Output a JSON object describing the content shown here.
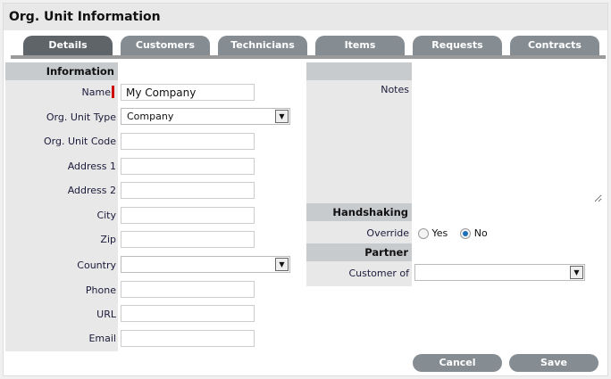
{
  "title": "Org. Unit Information",
  "tabs": [
    {
      "label": "Details",
      "active": true
    },
    {
      "label": "Customers"
    },
    {
      "label": "Technicians"
    },
    {
      "label": "Items"
    },
    {
      "label": "Requests"
    },
    {
      "label": "Contracts"
    }
  ],
  "information": {
    "header": "Information",
    "name_label": "Name",
    "name_value": "My Company",
    "type_label": "Org. Unit Type",
    "type_value": "Company",
    "code_label": "Org. Unit Code",
    "address1_label": "Address 1",
    "address2_label": "Address 2",
    "city_label": "City",
    "zip_label": "Zip",
    "country_label": "Country",
    "phone_label": "Phone",
    "url_label": "URL",
    "email_label": "Email"
  },
  "notes": {
    "label": "Notes",
    "value": ""
  },
  "handshaking": {
    "header": "Handshaking",
    "override_label": "Override",
    "yes_label": "Yes",
    "no_label": "No",
    "selected": "No"
  },
  "partner": {
    "header": "Partner",
    "customer_of_label": "Customer of",
    "customer_of_value": ""
  },
  "buttons": {
    "cancel": "Cancel",
    "save": "Save"
  }
}
